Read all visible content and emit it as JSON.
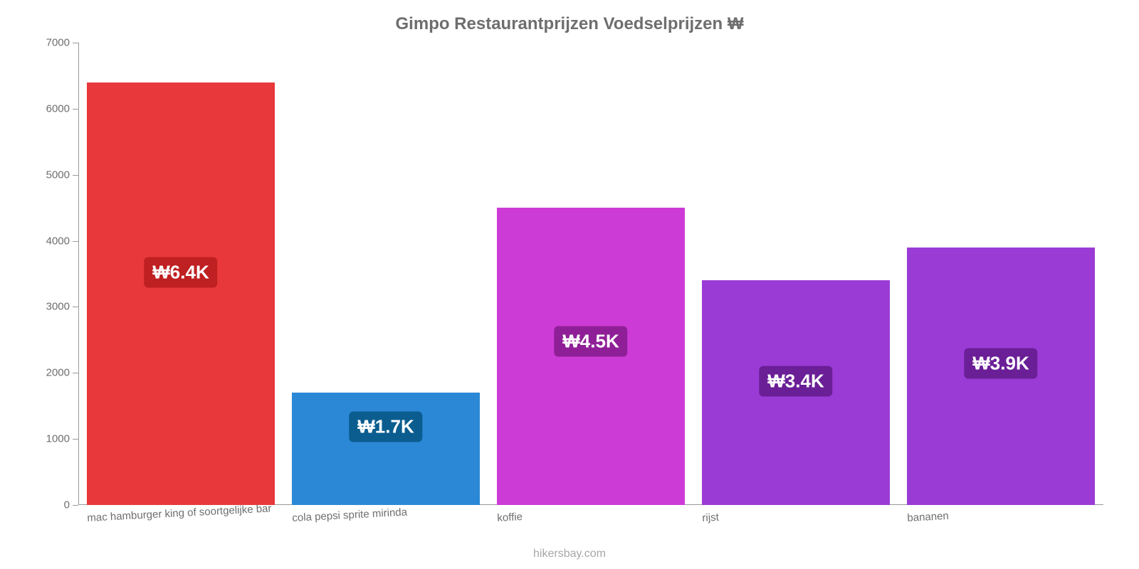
{
  "chart": {
    "type": "bar",
    "title": "Gimpo Restaurantprijzen Voedselprijzen ₩",
    "title_fontsize": 24,
    "title_color": "#6e6e6e",
    "background_color": "#ffffff",
    "axis_color": "#999999",
    "label_color": "#6e6e6e",
    "ylim": [
      0,
      7000
    ],
    "ytick_step": 1000,
    "ytick_labels": [
      "0",
      "1000",
      "2000",
      "3000",
      "4000",
      "5000",
      "6000",
      "7000"
    ],
    "ytick_fontsize": 15,
    "xlabel_fontsize": 15,
    "xlabel_rotate_deg": -3,
    "bar_width_ratio": 0.92,
    "categories": [
      "mac hamburger king of soortgelijke bar",
      "cola pepsi sprite mirinda",
      "koffie",
      "rijst",
      "bananen"
    ],
    "values": [
      6400,
      1700,
      4500,
      3400,
      3900
    ],
    "value_labels": [
      "₩6.4K",
      "₩1.7K",
      "₩4.5K",
      "₩3.4K",
      "₩3.9K"
    ],
    "bar_colors": [
      "#e8383b",
      "#2a88d6",
      "#cd3bd6",
      "#9b3bd6",
      "#9b3bd6"
    ],
    "badge_colors": [
      "#bf2022",
      "#0b5d8f",
      "#8f1f97",
      "#6a1f97",
      "#6a1f97"
    ],
    "badge_fontsize": 26,
    "badge_text_color": "#ffffff",
    "source": "hikersbay.com",
    "source_color": "#a7a7a7",
    "source_fontsize": 16
  }
}
